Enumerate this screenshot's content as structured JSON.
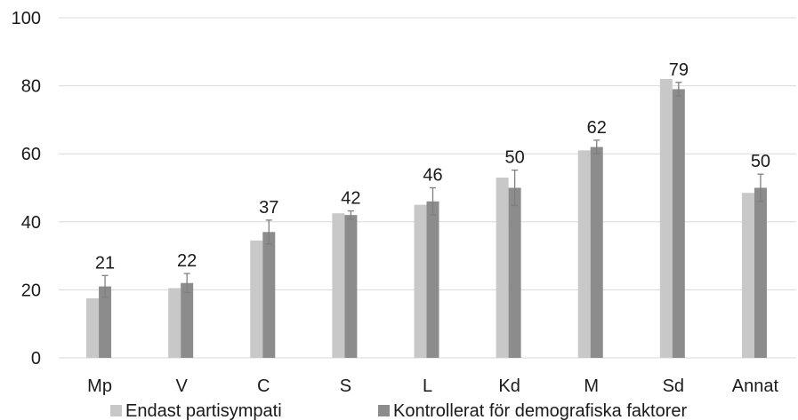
{
  "chart_data": {
    "type": "bar",
    "categories": [
      "Mp",
      "V",
      "C",
      "S",
      "L",
      "Kd",
      "M",
      "Sd",
      "Annat"
    ],
    "series": [
      {
        "name": "Endast partisympati",
        "color": "#c8c8c8",
        "values": [
          17.5,
          20.5,
          34.5,
          42.5,
          45,
          53,
          61,
          82,
          48.5
        ]
      },
      {
        "name": "Kontrollerat för demografiska faktorer",
        "color": "#8c8c8c",
        "values": [
          21,
          22,
          37,
          42,
          46,
          50,
          62,
          79,
          50
        ],
        "error": [
          3.2,
          2.8,
          3.5,
          1.2,
          4,
          5.2,
          2,
          2,
          4
        ],
        "data_labels": [
          "21",
          "22",
          "37",
          "42",
          "46",
          "50",
          "62",
          "79",
          "50"
        ]
      }
    ],
    "ylim": [
      0,
      100
    ],
    "yticks": [
      "0",
      "20",
      "40",
      "60",
      "80",
      "100"
    ],
    "grid": true,
    "legend": "bottom"
  }
}
